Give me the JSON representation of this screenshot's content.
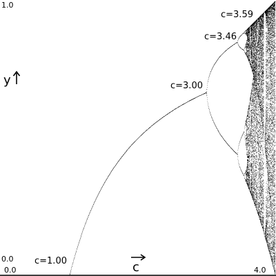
{
  "chart_data": {
    "type": "scatter",
    "xlim": [
      0.0,
      4.0
    ],
    "ylim": [
      0.0,
      1.0
    ],
    "x_min_label": "0.0",
    "x_max_label": "4.0",
    "y_min_label": "0.0",
    "y_max_label": "1.0",
    "x_axis_label": "c",
    "y_axis_label": "y",
    "annotations": [
      {
        "text": "c=1.00",
        "c": 1.0,
        "y": 0.0
      },
      {
        "text": "c=3.00",
        "c": 3.0,
        "y": 0.667
      },
      {
        "text": "c=3.46",
        "c": 3.46,
        "y": 0.85
      },
      {
        "text": "c=3.59",
        "c": 3.59,
        "y": 0.9
      }
    ],
    "series_color": "#000000",
    "grid": false
  }
}
